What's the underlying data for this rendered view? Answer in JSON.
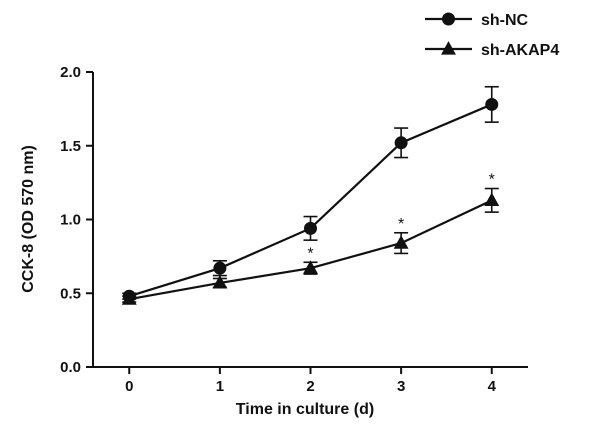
{
  "chart_data": {
    "type": "line",
    "xlabel": "Time in culture (d)",
    "ylabel": "CCK-8 (OD 570 nm)",
    "x": [
      0,
      1,
      2,
      3,
      4
    ],
    "x_ticks": [
      "0",
      "1",
      "2",
      "3",
      "4"
    ],
    "xlim": [
      -0.4,
      4.4
    ],
    "ylim": [
      0.0,
      2.0
    ],
    "y_ticks": [
      "0.0",
      "0.5",
      "1.0",
      "1.5",
      "2.0"
    ],
    "grid": false,
    "legend_position": "top-right",
    "series": [
      {
        "name": "sh-NC",
        "marker": "circle",
        "values": [
          0.48,
          0.67,
          0.94,
          1.52,
          1.78
        ],
        "errors": [
          0.02,
          0.05,
          0.08,
          0.1,
          0.12
        ],
        "annotations": [
          "",
          "",
          "",
          "",
          ""
        ]
      },
      {
        "name": "sh-AKAP4",
        "marker": "triangle",
        "values": [
          0.46,
          0.57,
          0.67,
          0.84,
          1.13
        ],
        "errors": [
          0.02,
          0.03,
          0.04,
          0.07,
          0.08
        ],
        "annotations": [
          "",
          "",
          "*",
          "*",
          "*"
        ]
      }
    ]
  }
}
